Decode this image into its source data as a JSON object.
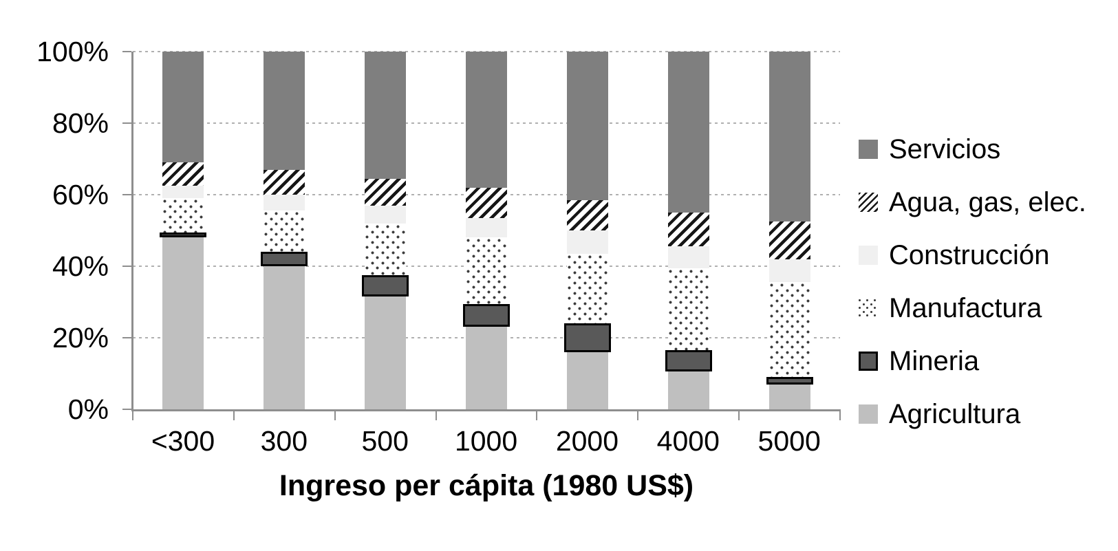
{
  "colors": {
    "background": "#ffffff",
    "servicios": "#7f7f7f",
    "construccion": "#f0f0f0",
    "mineria_fill": "#595959",
    "mineria_border": "#000000",
    "agricultura": "#bfbfbf",
    "pattern_ink": "#161616",
    "gridline": "#b0b0b0",
    "axis": "#8e8e8e",
    "text": "#000000"
  },
  "y_axis": {
    "ticks": [
      {
        "label": "100%",
        "value": 100
      },
      {
        "label": "80%",
        "value": 80
      },
      {
        "label": "60%",
        "value": 60
      },
      {
        "label": "40%",
        "value": 40
      },
      {
        "label": "20%",
        "value": 20
      },
      {
        "label": "0%",
        "value": 0
      }
    ]
  },
  "legend": {
    "items": [
      {
        "label": "Servicios",
        "pattern": "solid-dark-gray"
      },
      {
        "label": "Agua, gas, elec.",
        "pattern": "diagonal-hatch"
      },
      {
        "label": "Construcción",
        "pattern": "solid-near-white"
      },
      {
        "label": "Manufactura",
        "pattern": "dotted"
      },
      {
        "label": "Mineria",
        "pattern": "dark-box"
      },
      {
        "label": "Agricultura",
        "pattern": "solid-light-gray"
      }
    ]
  },
  "chart_data": {
    "type": "bar",
    "stacked": true,
    "units": "percent of total",
    "categories": [
      "<300",
      "300",
      "500",
      "1000",
      "2000",
      "4000",
      "5000"
    ],
    "series": [
      {
        "name": "Agricultura",
        "pattern": "solid-light-gray",
        "values": [
          48,
          40,
          31.5,
          23,
          16,
          10.5,
          7
        ]
      },
      {
        "name": "Mineria",
        "pattern": "dark-box",
        "values": [
          1.5,
          4,
          6,
          6.5,
          8,
          6,
          2
        ]
      },
      {
        "name": "Manufactura",
        "pattern": "dotted",
        "values": [
          9.5,
          11.5,
          14.5,
          18.5,
          19.5,
          23,
          26.5
        ]
      },
      {
        "name": "Construcción",
        "pattern": "solid-near-white",
        "values": [
          3.5,
          4.5,
          5,
          5.5,
          6.5,
          6,
          6.5
        ]
      },
      {
        "name": "Agua, gas, elec.",
        "pattern": "diagonal-hatch",
        "values": [
          6.5,
          7,
          7.5,
          8.5,
          8.5,
          9.5,
          10.5
        ]
      },
      {
        "name": "Servicios",
        "pattern": "solid-dark-gray",
        "values": [
          31,
          33,
          35.5,
          38,
          41.5,
          45,
          47.5
        ]
      }
    ],
    "title": "",
    "xlabel": "Ingreso per cápita (1980 US$)",
    "ylabel": "",
    "ylim": [
      0,
      100
    ],
    "grid": "dashed horizontal lines every 20%",
    "legend_position": "right"
  }
}
